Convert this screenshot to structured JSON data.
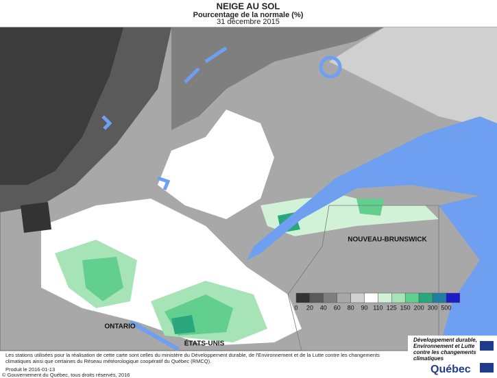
{
  "header": {
    "title": "NEIGE AU SOL",
    "subtitle": "Pourcentage de la normale (%)",
    "date": "31 décembre 2015"
  },
  "map_labels": {
    "ontario": "ONTARIO",
    "usa": "ÉTATS-UNIS",
    "nb": "NOUVEAU-BRUNSWICK"
  },
  "legend": {
    "ticks": [
      0,
      20,
      40,
      60,
      80,
      90,
      110,
      125,
      150,
      200,
      300,
      500
    ],
    "colors": [
      "#333333",
      "#5a5a5a",
      "#7f7f7f",
      "#a8a8a8",
      "#d0d0d0",
      "#ffffff",
      "#d2f2d8",
      "#a6e4b8",
      "#62cf8e",
      "#2aa77c",
      "#1f7fa0",
      "#1c1cc8"
    ]
  },
  "footer": {
    "note": "Les stations utilisées pour la réalisation de cette carte sont celles du ministère du Développement durable, de l'Environnement et de la Lutte contre les changements climatiques ainsi que certaines du Réseau météorologique coopératif du Québec (RMCQ).",
    "produced": "Produit le 2016-01-13",
    "copyright": "© Gouvernement du Québec, tous droits réservés, 2016"
  },
  "logo": {
    "ministry": "Développement durable, Environnement et Lutte contre les changements climatiques",
    "name": "Québec"
  }
}
